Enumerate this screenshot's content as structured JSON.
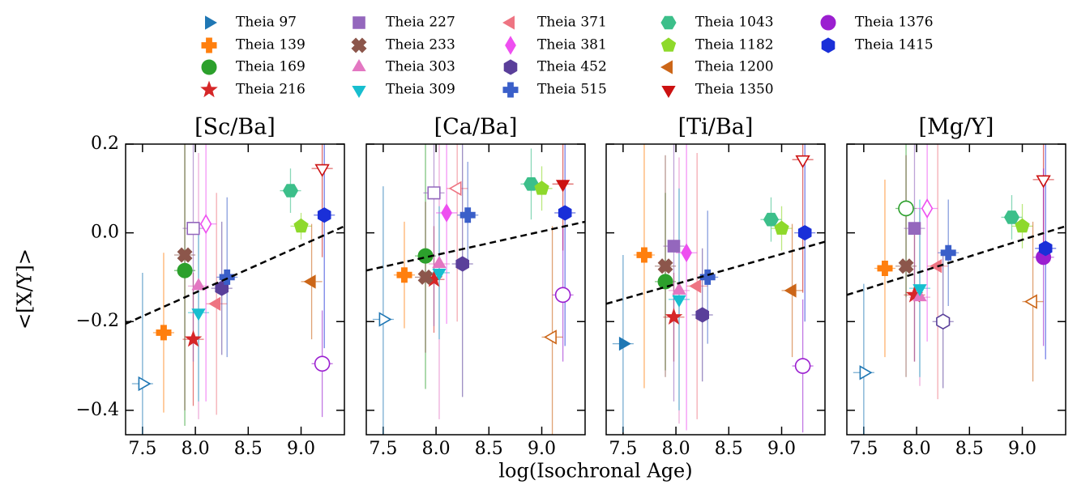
{
  "chart_data": {
    "type": "scatter",
    "xlabel": "log(Isochronal Age)",
    "ylabel": "<[X/Y]>",
    "xlim": [
      7.34,
      9.41
    ],
    "ylim": [
      -0.455,
      0.2
    ],
    "xticks": [
      7.5,
      {
        "value": 8,
        "label": "8.0"
      },
      8.5,
      {
        "value": 9,
        "label": "9.0"
      }
    ],
    "yticks": [
      {
        "value": -0.4,
        "label": "−0.4"
      },
      {
        "value": -0.2,
        "label": "−0.2"
      },
      {
        "value": 0,
        "label": "0.0"
      },
      0.2
    ],
    "legend": [
      {
        "name": "Theia 97",
        "color": "#1f77b4",
        "marker": "tri-right"
      },
      {
        "name": "Theia 139",
        "color": "#ff7f0e",
        "marker": "plus"
      },
      {
        "name": "Theia 169",
        "color": "#2ca02c",
        "marker": "circle"
      },
      {
        "name": "Theia 216",
        "color": "#d62728",
        "marker": "star"
      },
      {
        "name": "Theia 227",
        "color": "#9467bd",
        "marker": "square"
      },
      {
        "name": "Theia 233",
        "color": "#8c564b",
        "marker": "cross"
      },
      {
        "name": "Theia 303",
        "color": "#e377c2",
        "marker": "tri-up"
      },
      {
        "name": "Theia 309",
        "color": "#17becf",
        "marker": "tri-down"
      },
      {
        "name": "Theia 371",
        "color": "#ee7482",
        "marker": "tri-left"
      },
      {
        "name": "Theia 381",
        "color": "#ee4ff0",
        "marker": "diamond"
      },
      {
        "name": "Theia 452",
        "color": "#5a3f9a",
        "marker": "hexagon"
      },
      {
        "name": "Theia 515",
        "color": "#3a5fc9",
        "marker": "plus"
      },
      {
        "name": "Theia 1043",
        "color": "#3cbf8a",
        "marker": "hexagon2"
      },
      {
        "name": "Theia 1182",
        "color": "#8ed92b",
        "marker": "pentagon"
      },
      {
        "name": "Theia 1200",
        "color": "#cc6618",
        "marker": "tri-left"
      },
      {
        "name": "Theia 1350",
        "color": "#cc1111",
        "marker": "tri-down"
      },
      {
        "name": "Theia 1376",
        "color": "#9b1fd0",
        "marker": "circle"
      },
      {
        "name": "Theia 1415",
        "color": "#1a2fd8",
        "marker": "hexagon"
      }
    ],
    "x": [
      7.5,
      7.7,
      7.9,
      7.98,
      7.98,
      7.9,
      8.03,
      8.03,
      8.2,
      8.1,
      8.25,
      8.3,
      8.9,
      9.0,
      9.1,
      9.2,
      9.2,
      9.22
    ],
    "xerr": [
      0.1,
      0.1,
      0.1,
      0.1,
      0.1,
      0.1,
      0.1,
      0.1,
      0.1,
      0.1,
      0.1,
      0.1,
      0.1,
      0.1,
      0.1,
      0.1,
      0.1,
      0.1
    ],
    "fit_x": [
      7.34,
      9.41
    ],
    "panels": [
      {
        "title": "[Sc/Ba]",
        "values": [
          -0.34,
          -0.225,
          -0.085,
          -0.24,
          0.01,
          -0.05,
          -0.12,
          -0.18,
          -0.16,
          0.02,
          -0.125,
          -0.1,
          0.095,
          0.015,
          -0.11,
          0.145,
          -0.295,
          0.04
        ],
        "yerr": [
          0.25,
          0.18,
          0.35,
          0.15,
          0.3,
          0.35,
          0.3,
          0.2,
          0.25,
          0.4,
          0.15,
          0.18,
          0.05,
          0.03,
          0.13,
          0.2,
          0.12,
          0.3
        ],
        "filled": [
          false,
          true,
          true,
          true,
          false,
          true,
          true,
          true,
          true,
          false,
          true,
          true,
          true,
          true,
          true,
          false,
          false,
          true
        ],
        "fit": [
          -0.205,
          0.015
        ]
      },
      {
        "title": "[Ca/Ba]",
        "values": [
          -0.195,
          -0.095,
          -0.052,
          -0.105,
          0.09,
          -0.1,
          -0.07,
          -0.09,
          0.1,
          0.045,
          -0.07,
          0.04,
          0.11,
          0.1,
          -0.235,
          0.11,
          -0.14,
          0.045
        ],
        "yerr": [
          0.3,
          0.12,
          0.3,
          0.12,
          0.3,
          0.17,
          0.35,
          0.15,
          0.3,
          0.25,
          0.3,
          0.12,
          0.08,
          0.05,
          0.25,
          0.15,
          0.15,
          0.3
        ],
        "filled": [
          false,
          true,
          true,
          true,
          false,
          true,
          true,
          true,
          false,
          true,
          true,
          true,
          true,
          true,
          false,
          true,
          false,
          true
        ],
        "fit": [
          -0.085,
          0.025
        ]
      },
      {
        "title": "[Ti/Ba]",
        "values": [
          -0.25,
          -0.05,
          -0.11,
          -0.19,
          -0.03,
          -0.075,
          -0.13,
          -0.15,
          -0.12,
          -0.045,
          -0.185,
          -0.1,
          0.03,
          0.01,
          -0.13,
          0.165,
          -0.3,
          0.0
        ],
        "yerr": [
          0.2,
          0.3,
          0.2,
          0.1,
          0.35,
          0.25,
          0.3,
          0.25,
          0.3,
          0.4,
          0.15,
          0.15,
          0.05,
          0.05,
          0.15,
          0.3,
          0.15,
          0.2
        ],
        "filled": [
          true,
          true,
          true,
          true,
          true,
          true,
          true,
          true,
          true,
          true,
          true,
          true,
          true,
          true,
          true,
          false,
          false,
          true
        ],
        "fit": [
          -0.16,
          -0.02
        ]
      },
      {
        "title": "[Mg/Y]",
        "values": [
          -0.315,
          -0.08,
          0.055,
          -0.14,
          0.01,
          -0.075,
          -0.145,
          -0.125,
          -0.075,
          0.055,
          -0.2,
          -0.045,
          0.035,
          0.015,
          -0.155,
          0.12,
          -0.055,
          -0.035
        ],
        "yerr": [
          0.2,
          0.2,
          0.2,
          0.15,
          0.3,
          0.25,
          0.2,
          0.2,
          0.3,
          0.3,
          0.15,
          0.12,
          0.05,
          0.05,
          0.18,
          0.15,
          0.2,
          0.25
        ],
        "filled": [
          false,
          true,
          false,
          true,
          true,
          true,
          true,
          true,
          true,
          false,
          false,
          true,
          true,
          true,
          false,
          false,
          true,
          true
        ],
        "fit": [
          -0.14,
          0.015
        ]
      }
    ]
  }
}
